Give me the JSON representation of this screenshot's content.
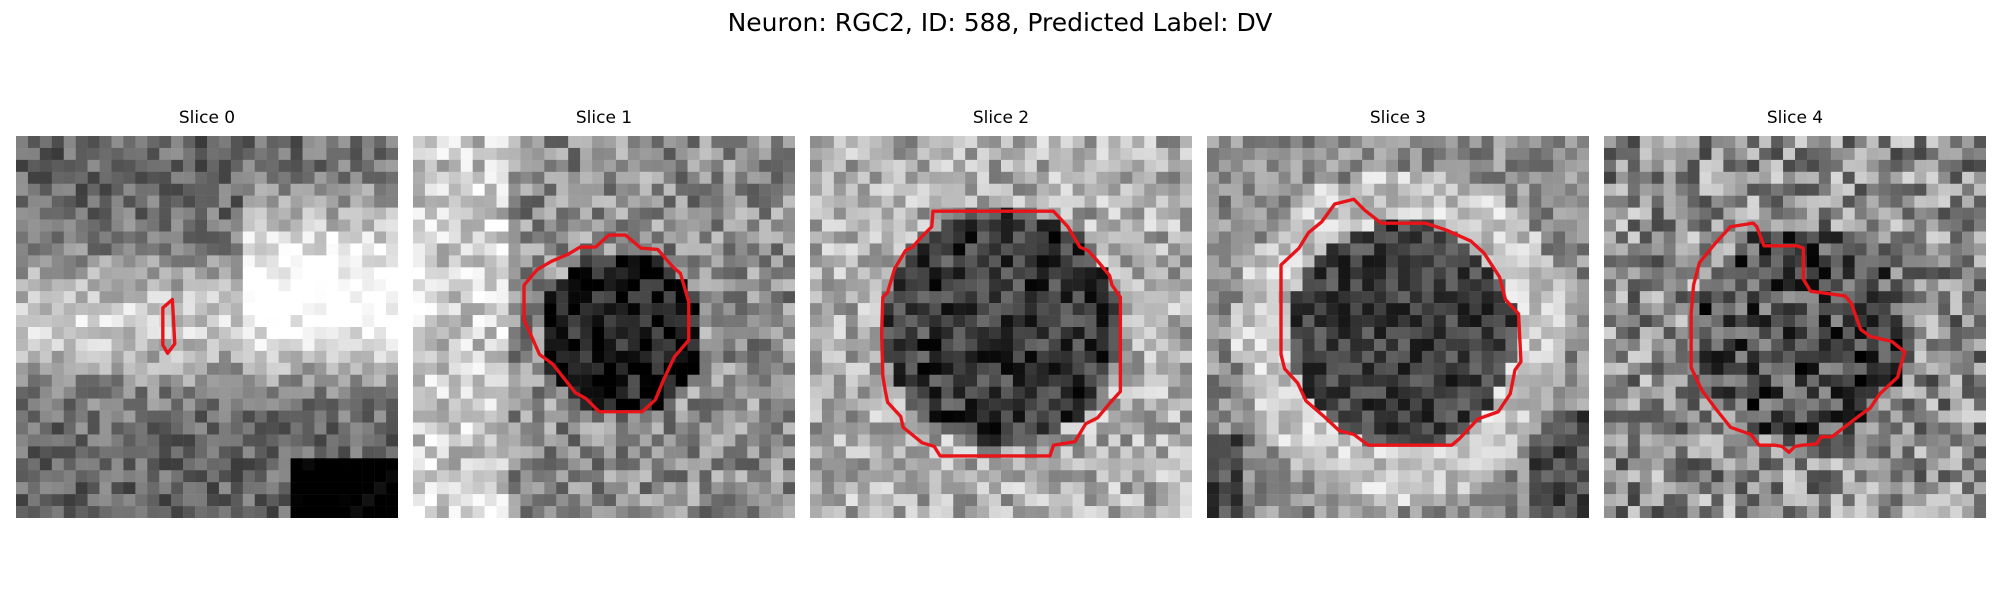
{
  "figure": {
    "title": "Neuron: RGC2, ID: 588, Predicted Label: DV"
  },
  "colors": {
    "contour": "#e8141a",
    "background": "#ffffff"
  },
  "panels": [
    {
      "title": "Slice 0",
      "pattern": "band"
    },
    {
      "title": "Slice 1",
      "pattern": "soma-left-bright"
    },
    {
      "title": "Slice 2",
      "pattern": "soma-center"
    },
    {
      "title": "Slice 3",
      "pattern": "soma-ring"
    },
    {
      "title": "Slice 4",
      "pattern": "soma-irregular"
    }
  ]
}
